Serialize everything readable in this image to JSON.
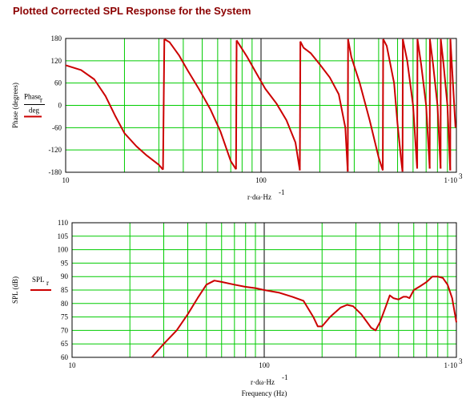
{
  "page": {
    "title": "Plotted Corrected SPL Response for the System"
  },
  "chart_data": [
    {
      "type": "line",
      "title": "",
      "xscale": "log",
      "xlim": [
        10,
        1000
      ],
      "ylim": [
        -180,
        180
      ],
      "y_ticks": [
        -180,
        -120,
        -60,
        0,
        60,
        120,
        180
      ],
      "x_tick_labels": [
        "10",
        "100",
        "1·10"
      ],
      "x_tick_sup": "3",
      "xlabel": {
        "main": "r·dω·Hz",
        "sup": "-1"
      },
      "ylabel": "Phase (degrees)",
      "legend": {
        "text": "Phase",
        "sub": "r",
        "denominator": "deg",
        "color": "#cc0000"
      },
      "grid": true,
      "grid_color": "#00cc00",
      "series": [
        {
          "color": "#cc0000",
          "x": [
            10,
            12,
            14,
            16,
            18,
            20,
            23,
            26,
            30,
            31.5,
            32,
            34,
            38,
            42,
            48,
            55,
            62,
            70,
            74.5,
            75,
            76,
            85,
            95,
            105,
            120,
            135,
            150,
            158,
            159,
            165,
            180,
            200,
            225,
            250,
            270,
            278,
            279,
            290,
            320,
            360,
            400,
            420,
            422,
            440,
            480,
            500,
            520,
            530,
            532,
            560,
            600,
            630,
            632,
            660,
            700,
            730,
            732,
            760,
            800,
            830,
            832,
            860,
            900,
            930,
            932,
            960,
            990
          ],
          "y": [
            108,
            95,
            70,
            25,
            -30,
            -75,
            -110,
            -135,
            -160,
            -173,
            178,
            170,
            135,
            95,
            45,
            -10,
            -70,
            -150,
            -172,
            175,
            170,
            130,
            85,
            45,
            5,
            -40,
            -100,
            -175,
            172,
            155,
            140,
            110,
            75,
            30,
            -60,
            -178,
            178,
            130,
            60,
            -40,
            -140,
            -175,
            178,
            160,
            60,
            -50,
            -140,
            -178,
            178,
            120,
            0,
            -170,
            178,
            110,
            0,
            -170,
            178,
            110,
            0,
            -170,
            178,
            110,
            0,
            -175,
            178,
            60,
            -60
          ]
        }
      ]
    },
    {
      "type": "line",
      "title": "",
      "xscale": "log",
      "xlim": [
        10,
        1000
      ],
      "ylim": [
        60,
        110
      ],
      "y_ticks": [
        60,
        65,
        70,
        75,
        80,
        85,
        90,
        95,
        100,
        105,
        110
      ],
      "x_tick_labels": [
        "10",
        "100",
        "1·10"
      ],
      "x_tick_sup": "3",
      "xlabel": {
        "main": "r·dω·Hz",
        "sup": "-1",
        "second": "Frequency (Hz)"
      },
      "ylabel": "SPL (dB)",
      "legend": {
        "text": "SPL",
        "sub": "r",
        "color": "#cc0000"
      },
      "grid": true,
      "grid_color": "#00cc00",
      "series": [
        {
          "color": "#cc0000",
          "x": [
            26,
            30,
            35,
            40,
            45,
            50,
            55,
            60,
            70,
            80,
            90,
            100,
            120,
            140,
            160,
            180,
            190,
            200,
            220,
            250,
            270,
            290,
            320,
            360,
            380,
            400,
            430,
            450,
            470,
            500,
            530,
            550,
            570,
            600,
            650,
            700,
            750,
            800,
            850,
            900,
            950,
            1000
          ],
          "y": [
            60,
            65,
            70,
            76,
            82,
            87,
            88.5,
            88,
            87,
            86.2,
            85.7,
            85,
            84,
            82.5,
            81,
            75,
            71.5,
            71.5,
            75,
            78.5,
            79.5,
            79,
            76,
            71,
            70,
            73,
            79,
            83,
            82,
            81.5,
            82.5,
            82.5,
            82,
            85,
            86.5,
            88,
            90,
            90,
            89.5,
            87,
            82,
            73
          ]
        }
      ]
    }
  ]
}
